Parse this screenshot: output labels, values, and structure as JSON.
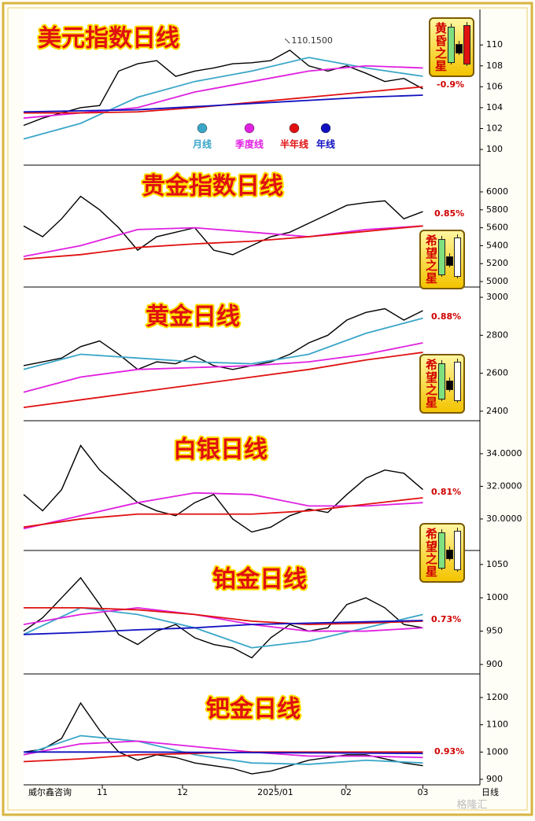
{
  "chart_data": [
    {
      "type": "line",
      "title": "美元指数日线",
      "change_label": "-0.9%",
      "badge": "黄昏之星",
      "xlim": [
        0,
        120
      ],
      "ylim": [
        98.5,
        113.4
      ],
      "yticks": [
        100,
        102,
        104,
        106,
        108,
        110
      ],
      "annotations": [
        {
          "text": "110.1500",
          "x": 70,
          "y": 110.15
        }
      ],
      "series": [
        {
          "color": "#000000",
          "x": [
            0,
            5,
            10,
            15,
            20,
            25,
            30,
            35,
            40,
            45,
            50,
            55,
            60,
            65,
            70,
            75,
            80,
            85,
            90,
            95,
            100,
            105
          ],
          "values": [
            102.3,
            103,
            103.5,
            104,
            104.2,
            107.5,
            108.2,
            108.5,
            107,
            107.5,
            107.8,
            108.2,
            108.3,
            108.5,
            109.5,
            108,
            107.5,
            108,
            107.3,
            106.5,
            106.8,
            105.8
          ]
        },
        {
          "name": "月线",
          "color": "#3aa6c8",
          "x": [
            0,
            15,
            30,
            45,
            60,
            75,
            90,
            105
          ],
          "values": [
            101,
            102.5,
            105,
            106.5,
            107.5,
            108.8,
            107.8,
            107
          ]
        },
        {
          "name": "季度线",
          "color": "#e020e0",
          "x": [
            0,
            15,
            30,
            45,
            60,
            75,
            90,
            105
          ],
          "values": [
            103,
            103.5,
            104,
            105.5,
            106.5,
            107.5,
            108,
            107.8
          ]
        },
        {
          "name": "半年线",
          "color": "#e01010",
          "x": [
            0,
            15,
            30,
            45,
            60,
            75,
            90,
            105
          ],
          "values": [
            103.5,
            103.5,
            103.6,
            104,
            104.5,
            105,
            105.5,
            106
          ]
        },
        {
          "name": "年线",
          "color": "#1010c0",
          "x": [
            0,
            15,
            30,
            45,
            60,
            75,
            90,
            105
          ],
          "values": [
            103.6,
            103.7,
            103.8,
            104.1,
            104.4,
            104.7,
            105,
            105.2
          ]
        }
      ]
    },
    {
      "type": "line",
      "title": "贵金指数日线",
      "change_label": "0.85%",
      "badge": "希望之星",
      "xlim": [
        0,
        120
      ],
      "ylim": [
        4939,
        6298
      ],
      "yticks": [
        5000,
        5200,
        5400,
        5600,
        5800,
        6000
      ],
      "series": [
        {
          "color": "#000000",
          "x": [
            0,
            5,
            10,
            15,
            20,
            25,
            30,
            35,
            40,
            45,
            50,
            55,
            60,
            65,
            70,
            75,
            80,
            85,
            90,
            95,
            100,
            105
          ],
          "values": [
            5620,
            5500,
            5700,
            5950,
            5800,
            5600,
            5350,
            5500,
            5550,
            5600,
            5350,
            5300,
            5400,
            5500,
            5550,
            5650,
            5750,
            5850,
            5880,
            5900,
            5700,
            5780
          ]
        },
        {
          "color": "#e020e0",
          "x": [
            0,
            15,
            30,
            45,
            60,
            75,
            90,
            105
          ],
          "values": [
            5280,
            5400,
            5580,
            5600,
            5550,
            5500,
            5580,
            5620
          ]
        },
        {
          "color": "#e01010",
          "x": [
            0,
            15,
            30,
            45,
            60,
            75,
            90,
            105
          ],
          "values": [
            5250,
            5300,
            5380,
            5420,
            5450,
            5500,
            5560,
            5620
          ]
        }
      ]
    },
    {
      "type": "line",
      "title": "黄金日线",
      "change_label": "0.88%",
      "badge": "希望之星",
      "xlim": [
        0,
        120
      ],
      "ylim": [
        2350,
        3054
      ],
      "yticks": [
        2400,
        2600,
        2800,
        3000
      ],
      "series": [
        {
          "color": "#000000",
          "x": [
            0,
            5,
            10,
            15,
            20,
            25,
            30,
            35,
            40,
            45,
            50,
            55,
            60,
            65,
            70,
            75,
            80,
            85,
            90,
            95,
            100,
            105
          ],
          "values": [
            2640,
            2660,
            2680,
            2740,
            2770,
            2700,
            2620,
            2660,
            2650,
            2690,
            2640,
            2620,
            2640,
            2660,
            2700,
            2760,
            2800,
            2880,
            2920,
            2940,
            2880,
            2930
          ]
        },
        {
          "color": "#3aa6c8",
          "x": [
            0,
            15,
            30,
            45,
            60,
            75,
            90,
            105
          ],
          "values": [
            2620,
            2700,
            2680,
            2660,
            2650,
            2700,
            2810,
            2890
          ]
        },
        {
          "color": "#e020e0",
          "x": [
            0,
            15,
            30,
            45,
            60,
            75,
            90,
            105
          ],
          "values": [
            2500,
            2580,
            2620,
            2630,
            2640,
            2660,
            2700,
            2760
          ]
        },
        {
          "color": "#e01010",
          "x": [
            0,
            15,
            30,
            45,
            60,
            75,
            90,
            105
          ],
          "values": [
            2420,
            2460,
            2500,
            2540,
            2580,
            2620,
            2670,
            2710
          ]
        }
      ]
    },
    {
      "type": "line",
      "title": "白银日线",
      "change_label": "0.81%",
      "badge": "希望之星",
      "xlim": [
        0,
        120
      ],
      "ylim": [
        28.07,
        36.02
      ],
      "yticks": [
        {
          "value": 30,
          "label": "30.0000"
        },
        {
          "value": 32,
          "label": "32.0000"
        },
        {
          "value": 34,
          "label": "34.0000"
        }
      ],
      "series": [
        {
          "color": "#000000",
          "x": [
            0,
            5,
            10,
            15,
            20,
            25,
            30,
            35,
            40,
            45,
            50,
            55,
            60,
            65,
            70,
            75,
            80,
            85,
            90,
            95,
            100,
            105
          ],
          "values": [
            31.5,
            30.5,
            31.8,
            34.5,
            33,
            32,
            31,
            30.5,
            30.2,
            31,
            31.5,
            30,
            29.2,
            29.5,
            30.2,
            30.6,
            30.4,
            31.5,
            32.5,
            33,
            32.8,
            31.8
          ]
        },
        {
          "color": "#e020e0",
          "x": [
            0,
            15,
            30,
            45,
            60,
            75,
            90,
            105
          ],
          "values": [
            29.4,
            30.2,
            31,
            31.6,
            31.5,
            30.8,
            30.8,
            31
          ]
        },
        {
          "color": "#e01010",
          "x": [
            0,
            15,
            30,
            45,
            60,
            75,
            90,
            105
          ],
          "values": [
            29.5,
            30,
            30.3,
            30.3,
            30.3,
            30.5,
            30.9,
            31.3
          ]
        }
      ]
    },
    {
      "type": "line",
      "title": "铂金日线",
      "change_label": "0.73%",
      "xlim": [
        0,
        120
      ],
      "ylim": [
        885.8,
        1071
      ],
      "yticks": [
        900,
        950,
        1000,
        1050
      ],
      "series": [
        {
          "color": "#000000",
          "x": [
            0,
            5,
            10,
            15,
            20,
            25,
            30,
            35,
            40,
            45,
            50,
            55,
            60,
            65,
            70,
            75,
            80,
            85,
            90,
            95,
            100,
            105
          ],
          "values": [
            950,
            970,
            1000,
            1030,
            990,
            945,
            930,
            950,
            960,
            940,
            930,
            925,
            910,
            940,
            960,
            950,
            955,
            990,
            1000,
            985,
            960,
            955
          ]
        },
        {
          "color": "#3aa6c8",
          "x": [
            0,
            15,
            30,
            45,
            60,
            75,
            90,
            105
          ],
          "values": [
            945,
            985,
            975,
            955,
            925,
            935,
            955,
            975
          ]
        },
        {
          "color": "#e020e0",
          "x": [
            0,
            15,
            30,
            45,
            60,
            75,
            90,
            105
          ],
          "values": [
            960,
            975,
            985,
            975,
            960,
            950,
            950,
            955
          ]
        },
        {
          "color": "#e01010",
          "x": [
            0,
            15,
            30,
            45,
            60,
            75,
            90,
            105
          ],
          "values": [
            985,
            985,
            982,
            975,
            965,
            960,
            962,
            965
          ]
        },
        {
          "color": "#1010c0",
          "x": [
            0,
            15,
            30,
            45,
            60,
            75,
            90,
            105
          ],
          "values": [
            945,
            948,
            952,
            955,
            960,
            962,
            964,
            966
          ]
        }
      ]
    },
    {
      "type": "line",
      "title": "钯金日线",
      "change_label": "0.93%",
      "xlim": [
        0,
        120
      ],
      "ylim": [
        879.8,
        1286.5
      ],
      "yticks": [
        900,
        1000,
        1100,
        1200
      ],
      "xticks": [
        {
          "value": 20.7,
          "label": "11"
        },
        {
          "value": 41.8,
          "label": "12"
        },
        {
          "value": 66.2,
          "label": "2025/01"
        },
        {
          "value": 84.8,
          "label": "02"
        },
        {
          "value": 105,
          "label": "03"
        }
      ],
      "series": [
        {
          "color": "#000000",
          "x": [
            0,
            5,
            10,
            15,
            20,
            25,
            30,
            35,
            40,
            45,
            50,
            55,
            60,
            65,
            70,
            75,
            80,
            85,
            90,
            95,
            100,
            105
          ],
          "values": [
            1000,
            1010,
            1050,
            1180,
            1080,
            1000,
            970,
            990,
            980,
            960,
            950,
            940,
            920,
            930,
            950,
            970,
            980,
            990,
            990,
            975,
            960,
            950
          ]
        },
        {
          "color": "#3aa6c8",
          "x": [
            0,
            15,
            30,
            45,
            60,
            75,
            90,
            105
          ],
          "values": [
            990,
            1060,
            1040,
            990,
            960,
            955,
            970,
            960
          ]
        },
        {
          "color": "#e020e0",
          "x": [
            0,
            15,
            30,
            45,
            60,
            75,
            90,
            105
          ],
          "values": [
            990,
            1030,
            1040,
            1020,
            1000,
            985,
            985,
            980
          ]
        },
        {
          "color": "#e01010",
          "x": [
            0,
            15,
            30,
            45,
            60,
            75,
            90,
            105
          ],
          "values": [
            965,
            975,
            990,
            995,
            1000,
            1000,
            1000,
            1000
          ]
        },
        {
          "color": "#1010c0",
          "x": [
            0,
            15,
            30,
            45,
            60,
            75,
            90,
            105
          ],
          "values": [
            1000,
            1000,
            1000,
            999,
            998,
            997,
            996,
            995
          ]
        }
      ]
    }
  ],
  "footer": {
    "source": "威尔鑫咨询",
    "period": "日线",
    "watermark": "格隆汇"
  }
}
